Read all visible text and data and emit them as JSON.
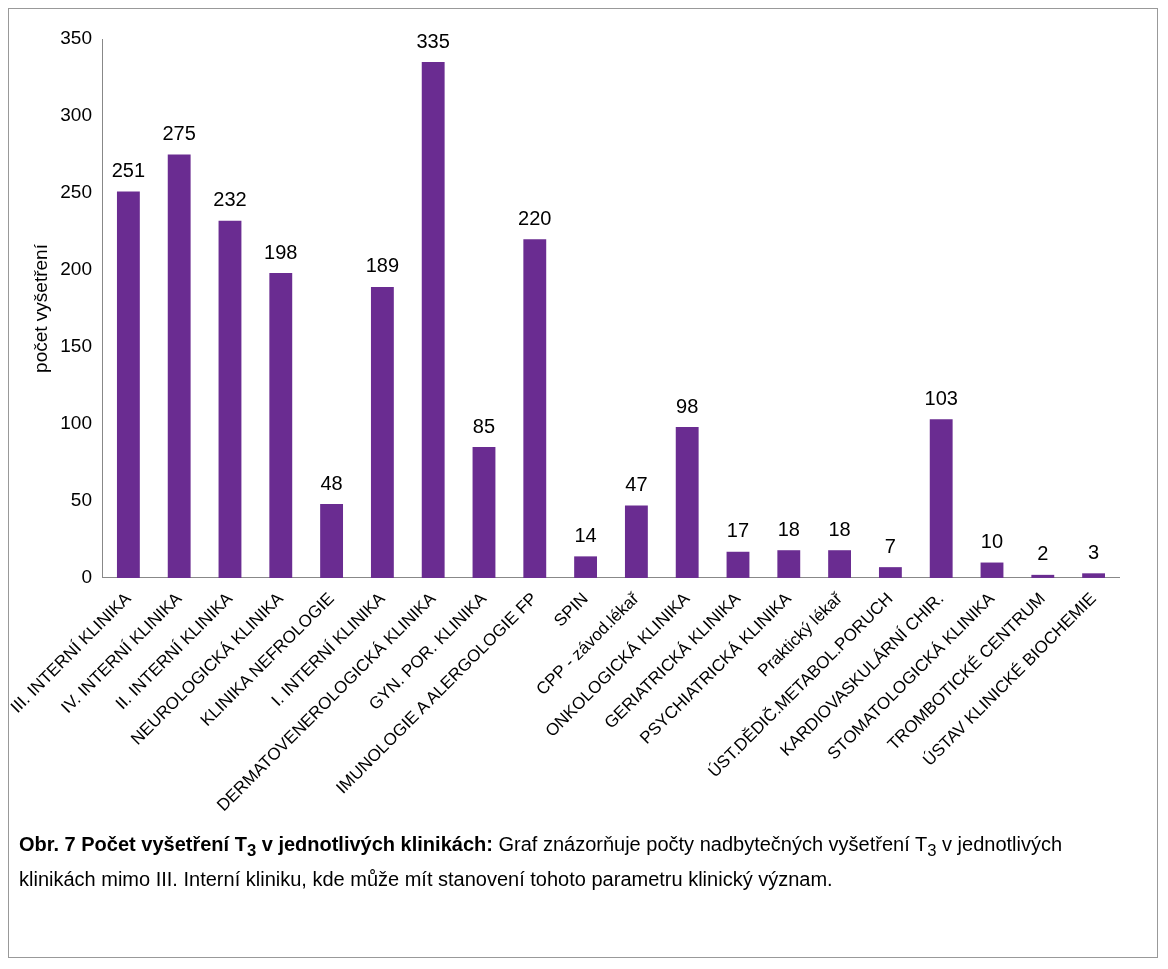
{
  "chart_data": {
    "type": "bar",
    "categories": [
      "III. INTERNÍ KLINIKA",
      "IV. INTERNÍ KLINIKA",
      "II. INTERNÍ KLINIKA",
      "NEUROLOGICKÁ KLINIKA",
      "KLINIKA NEFROLOGIE",
      "I. INTERNÍ KLINIKA",
      "DERMATOVENEROLOGICKÁ KLINIKA",
      "GYN. POR. KLINIKA",
      "IMUNOLOGIE A ALERGOLOGIE FP",
      "SPIN",
      "CPP - závod.lékař",
      "ONKOLOGICKÁ KLINIKA",
      "GERIATRICKÁ KLINIKA",
      "PSYCHIATRICKÁ KLINIKA",
      "Praktický lékař",
      "ÚST.DĚDIČ.METABOL.PORUCH",
      "KARDIOVASKULÁRNÍ CHIR.",
      "STOMATOLOGICKÁ KLINIKA",
      "TROMBOTICKÉ CENTRUM",
      "ÚSTAV KLINICKÉ BIOCHEMIE"
    ],
    "values": [
      251,
      275,
      232,
      198,
      48,
      189,
      335,
      85,
      220,
      14,
      47,
      98,
      17,
      18,
      18,
      7,
      103,
      10,
      2,
      3
    ],
    "color": "#6a2c91",
    "ylabel": "počet vyšetření",
    "ylim": [
      0,
      350
    ],
    "yticks": [
      0,
      50,
      100,
      150,
      200,
      250,
      300,
      350
    ],
    "grid": false,
    "legend": false,
    "data_labels": true,
    "annotations": [
      "Obr. 7 Počet vyšetření T$_{3}$ v jednotlivých klinikách:",
      "Graf znázorňuje počty nadbytečných vyšetření T$_{3}$ v jednotlivých klinikách mimo III. Interní kliniku, kde může mít stanovení tohoto parametru klinický význam."
    ]
  }
}
